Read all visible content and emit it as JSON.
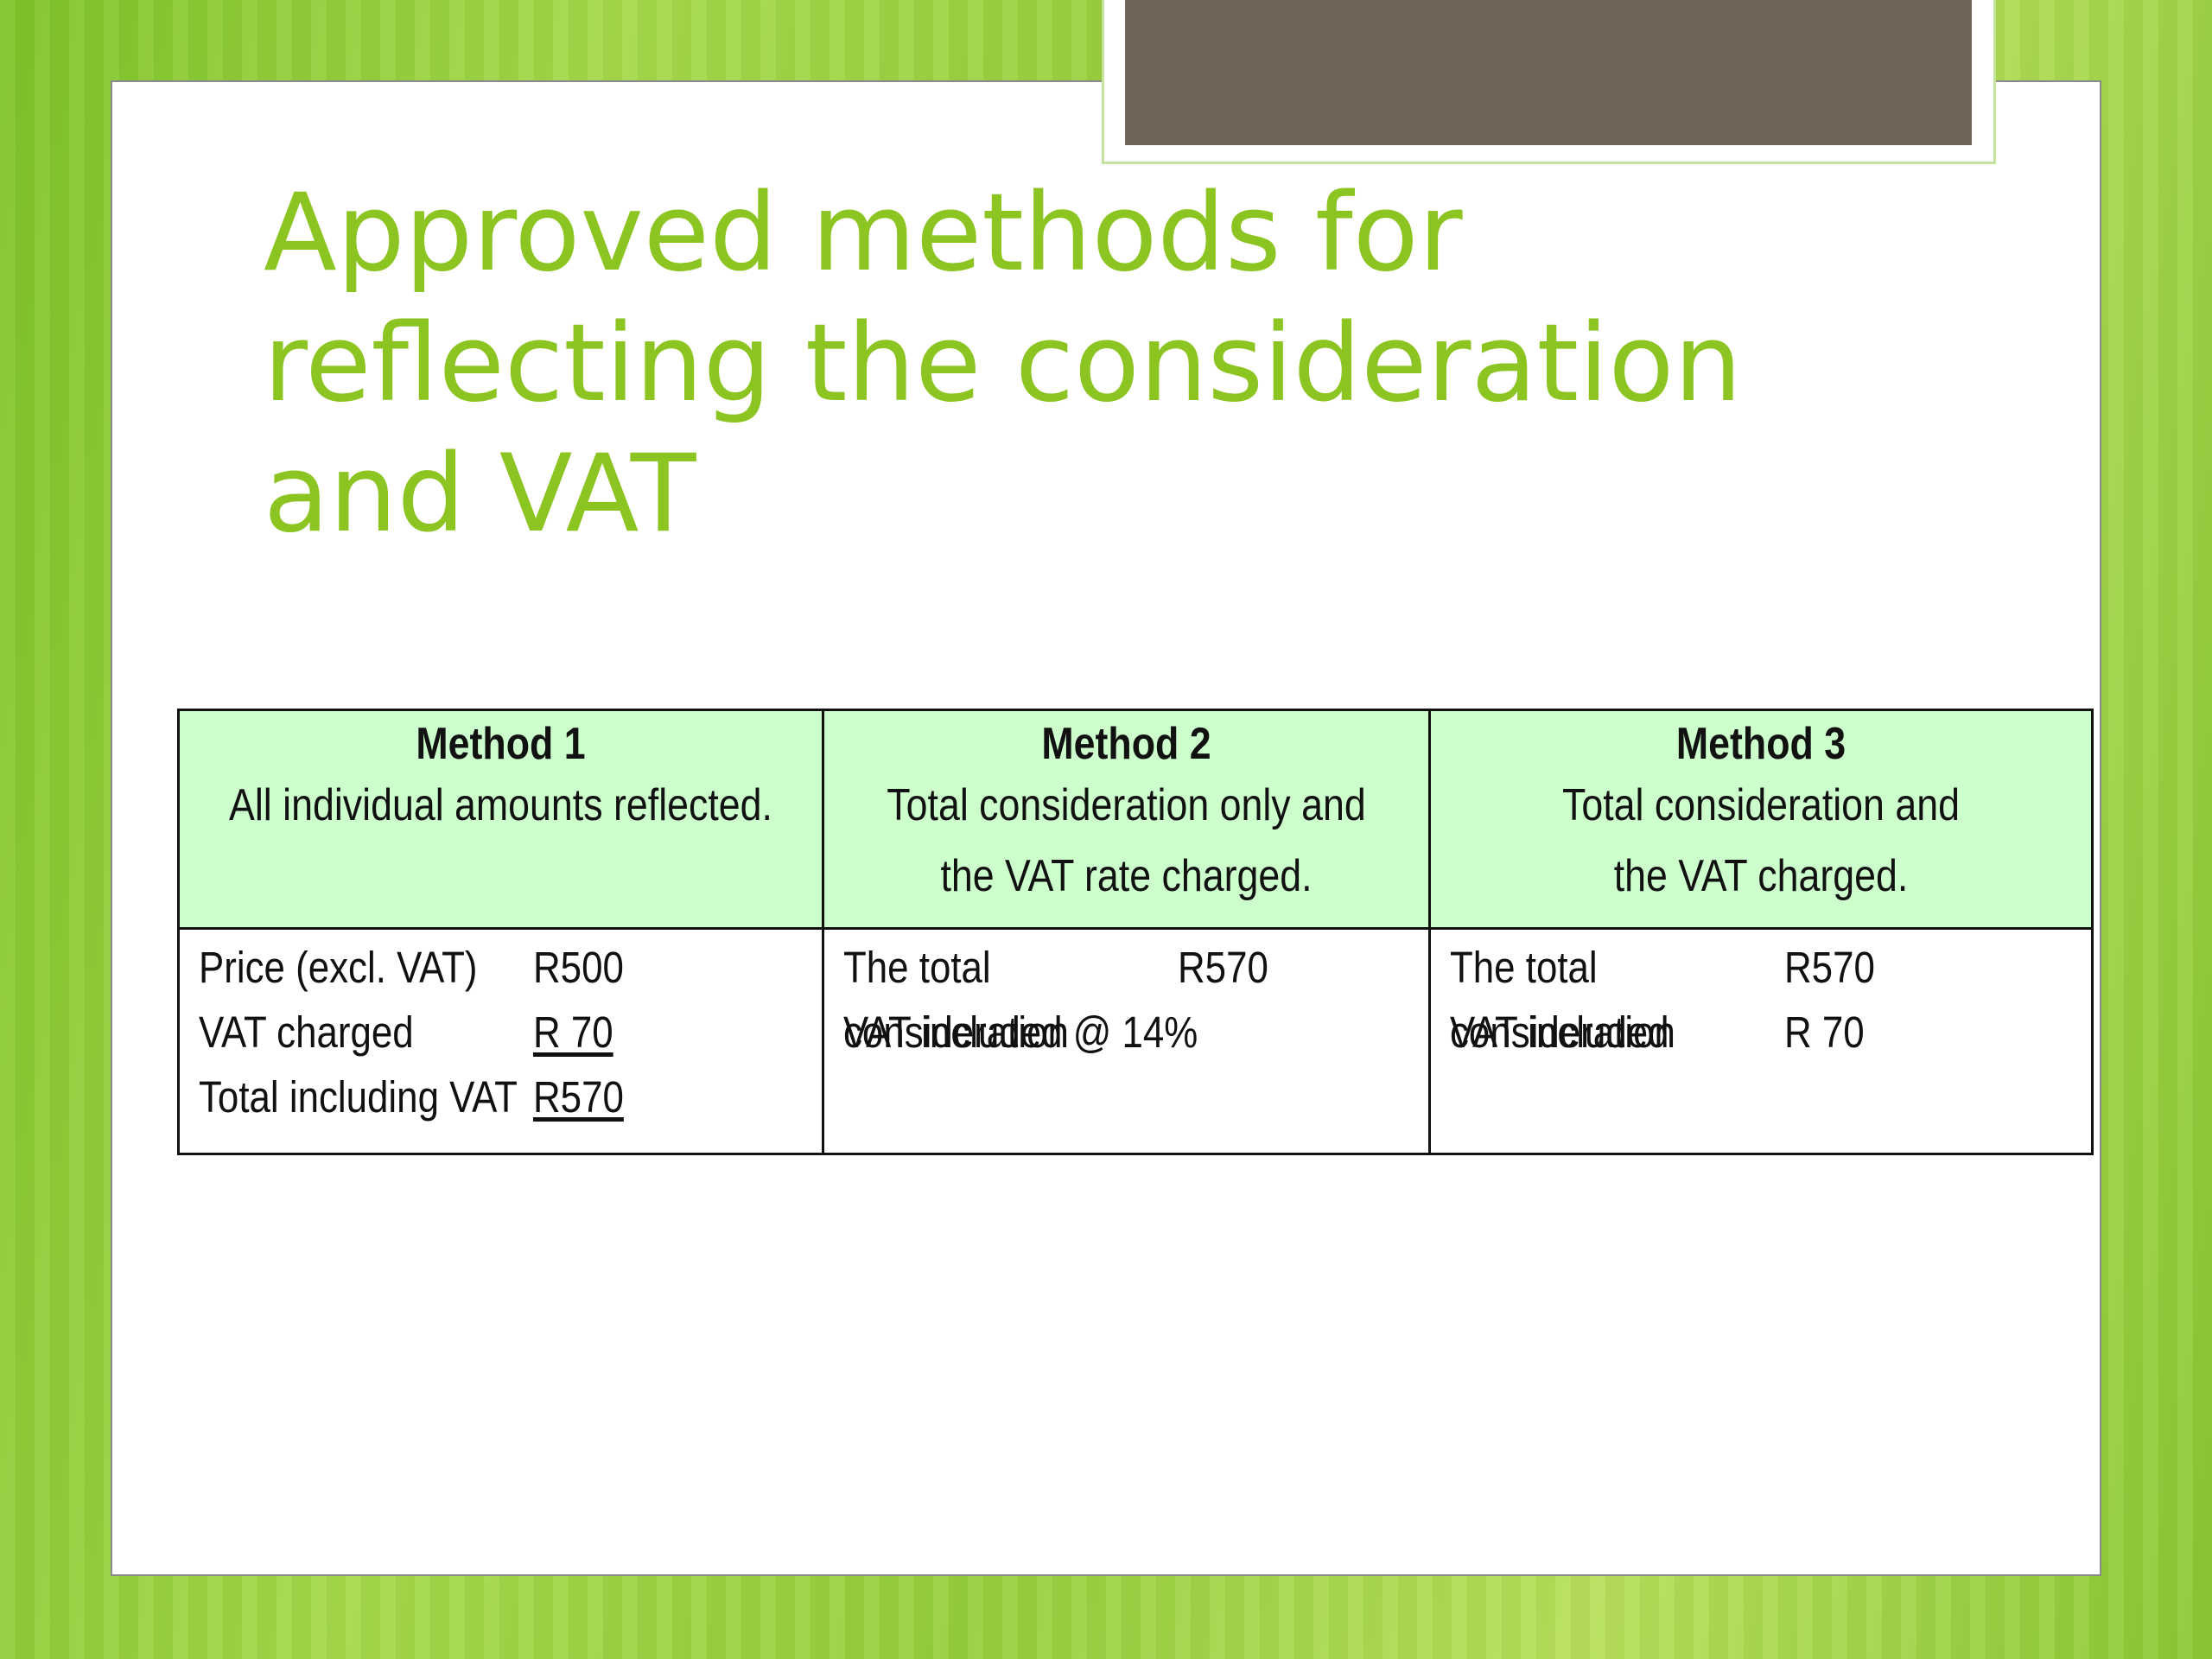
{
  "slide": {
    "title": "Approved methods for\nreflecting the consideration\nand VAT"
  },
  "methods": [
    {
      "name": "Method 1",
      "description": "All individual amounts reflected.",
      "lines": [
        {
          "label": "Price (excl. VAT)",
          "value": "R500"
        },
        {
          "label": "VAT charged",
          "value": "R 70"
        },
        {
          "label": "Total including VAT",
          "value": "R570"
        }
      ]
    },
    {
      "name": "Method 2",
      "description": "Total consideration only and\nthe VAT rate charged.",
      "lines": [
        {
          "label": "The total consideration",
          "value": "R570"
        },
        {
          "label": "VAT included @ 14%",
          "value": ""
        }
      ]
    },
    {
      "name": "Method 3",
      "description": "Total consideration and\nthe VAT charged.",
      "lines": [
        {
          "label": "The total consideration",
          "value": "R570"
        },
        {
          "label": "VAT included",
          "value": "R 70"
        }
      ]
    }
  ]
}
